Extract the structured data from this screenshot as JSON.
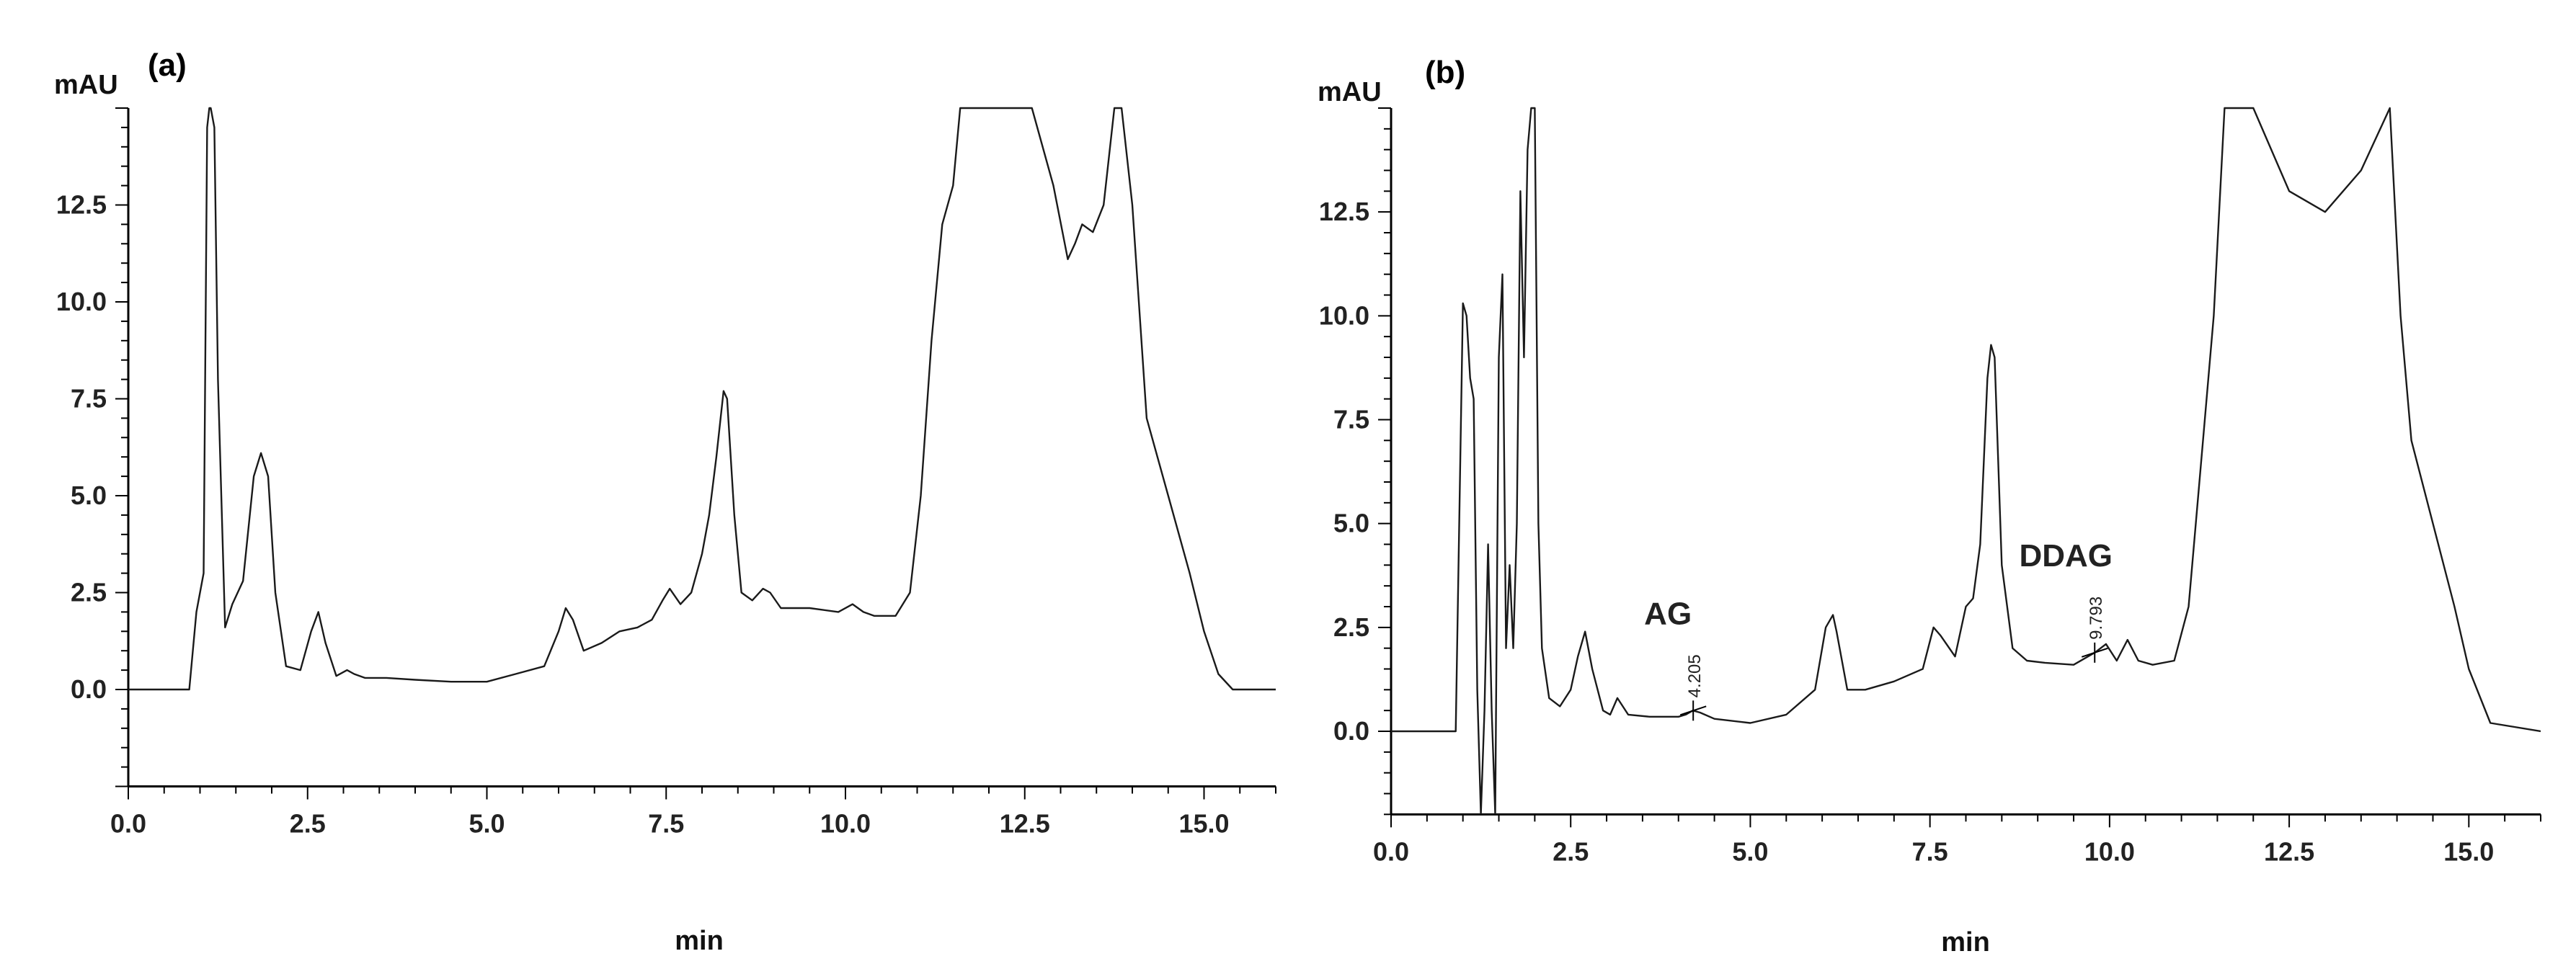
{
  "chart_data": [
    {
      "panel": "(a)",
      "type": "line",
      "xlabel": "min",
      "ylabel": "mAU",
      "xlim": [
        0,
        16
      ],
      "ylim": [
        -2.5,
        15
      ],
      "xticks": [
        "0.0",
        "2.5",
        "5.0",
        "7.5",
        "10.0",
        "12.5",
        "15.0"
      ],
      "yticks": [
        "0.0",
        "2.5",
        "5.0",
        "7.5",
        "10.0",
        "12.5"
      ],
      "series": [
        {
          "x": [
            0.0,
            0.85,
            0.95,
            1.05,
            1.1,
            1.13,
            1.15,
            1.2,
            1.25,
            1.35,
            1.45,
            1.6,
            1.75,
            1.85,
            1.95,
            2.05,
            2.2,
            2.4,
            2.55,
            2.65,
            2.75,
            2.9,
            3.05,
            3.15,
            3.3,
            3.6,
            4.0,
            4.5,
            5.0,
            5.4,
            5.8,
            6.0,
            6.1,
            6.2,
            6.35,
            6.6,
            6.85,
            7.1,
            7.3,
            7.45,
            7.55,
            7.7,
            7.85,
            8.0,
            8.1,
            8.2,
            8.3,
            8.35,
            8.45,
            8.55,
            8.7,
            8.85,
            8.95,
            9.1,
            9.5,
            9.9,
            10.1,
            10.25,
            10.4,
            10.7,
            10.9,
            11.05,
            11.2,
            11.35,
            11.5,
            11.6,
            11.75,
            12.0,
            12.3,
            12.6,
            12.9,
            13.1,
            13.2,
            13.3,
            13.45,
            13.6,
            13.75,
            13.85,
            14.0,
            14.2,
            14.5,
            14.8,
            15.0,
            15.2,
            15.4,
            16.0
          ],
          "y": [
            0.0,
            0.0,
            2.0,
            3.0,
            14.5,
            15.0,
            15.0,
            14.5,
            8.0,
            1.6,
            2.2,
            2.8,
            5.5,
            6.1,
            5.5,
            2.5,
            0.6,
            0.5,
            1.5,
            2.0,
            1.2,
            0.35,
            0.5,
            0.4,
            0.3,
            0.3,
            0.25,
            0.2,
            0.2,
            0.4,
            0.6,
            1.5,
            2.1,
            1.8,
            1.0,
            1.2,
            1.5,
            1.6,
            1.8,
            2.3,
            2.6,
            2.2,
            2.5,
            3.5,
            4.5,
            6.0,
            7.7,
            7.5,
            4.5,
            2.5,
            2.3,
            2.6,
            2.5,
            2.1,
            2.1,
            2.0,
            2.2,
            2.0,
            1.9,
            1.9,
            2.5,
            5.0,
            9.0,
            12.0,
            13.0,
            15.0,
            15.0,
            15.0,
            15.0,
            15.0,
            13.0,
            11.1,
            11.5,
            12.0,
            11.8,
            12.5,
            15.0,
            15.0,
            12.5,
            7.0,
            5.0,
            3.0,
            1.5,
            0.4,
            0.0,
            0.0
          ]
        }
      ],
      "annotations": []
    },
    {
      "panel": "(b)",
      "type": "line",
      "xlabel": "min",
      "ylabel": "mAU",
      "xlim": [
        0,
        16
      ],
      "ylim": [
        -2,
        15
      ],
      "xticks": [
        "0.0",
        "2.5",
        "5.0",
        "7.5",
        "10.0",
        "12.5",
        "15.0"
      ],
      "yticks": [
        "0.0",
        "2.5",
        "5.0",
        "7.5",
        "10.0",
        "12.5"
      ],
      "series": [
        {
          "x": [
            0.0,
            0.9,
            1.0,
            1.05,
            1.1,
            1.15,
            1.2,
            1.25,
            1.3,
            1.35,
            1.4,
            1.45,
            1.5,
            1.55,
            1.6,
            1.65,
            1.7,
            1.75,
            1.8,
            1.85,
            1.9,
            1.95,
            2.0,
            2.05,
            2.1,
            2.2,
            2.35,
            2.5,
            2.6,
            2.7,
            2.8,
            2.95,
            3.05,
            3.15,
            3.3,
            3.6,
            4.0,
            4.1,
            4.2,
            4.3,
            4.5,
            5.0,
            5.5,
            5.9,
            6.05,
            6.15,
            6.2,
            6.35,
            6.6,
            7.0,
            7.4,
            7.55,
            7.65,
            7.85,
            8.0,
            8.1,
            8.2,
            8.3,
            8.35,
            8.4,
            8.5,
            8.65,
            8.85,
            9.1,
            9.5,
            9.8,
            9.95,
            10.1,
            10.25,
            10.4,
            10.6,
            10.9,
            11.1,
            11.3,
            11.45,
            11.6,
            11.8,
            12.0,
            12.5,
            13.0,
            13.5,
            13.9,
            14.05,
            14.2,
            14.5,
            14.8,
            15.0,
            15.3,
            16.0
          ],
          "y": [
            0.0,
            0.0,
            10.3,
            10.0,
            8.5,
            8.0,
            1.0,
            -2.0,
            0.5,
            4.5,
            0.5,
            -2.0,
            9.0,
            11.0,
            2.0,
            4.0,
            2.0,
            5.0,
            13.0,
            9.0,
            14.0,
            15.0,
            15.0,
            5.0,
            2.0,
            0.8,
            0.6,
            1.0,
            1.8,
            2.4,
            1.5,
            0.5,
            0.4,
            0.8,
            0.4,
            0.35,
            0.35,
            0.4,
            0.5,
            0.45,
            0.3,
            0.2,
            0.4,
            1.0,
            2.5,
            2.8,
            2.4,
            1.0,
            1.0,
            1.2,
            1.5,
            2.5,
            2.3,
            1.8,
            3.0,
            3.2,
            4.5,
            8.5,
            9.3,
            9.0,
            4.0,
            2.0,
            1.7,
            1.65,
            1.6,
            1.9,
            2.1,
            1.7,
            2.2,
            1.7,
            1.6,
            1.7,
            3.0,
            7.0,
            10.0,
            15.0,
            15.0,
            15.0,
            13.0,
            12.5,
            13.5,
            15.0,
            10.0,
            7.0,
            5.0,
            3.0,
            1.5,
            0.2,
            0.0
          ]
        }
      ],
      "annotations": [
        {
          "text": "AG",
          "rt": "4.205",
          "x": 4.205
        },
        {
          "text": "DDAG",
          "rt": "9.793",
          "x": 9.793
        }
      ]
    }
  ]
}
